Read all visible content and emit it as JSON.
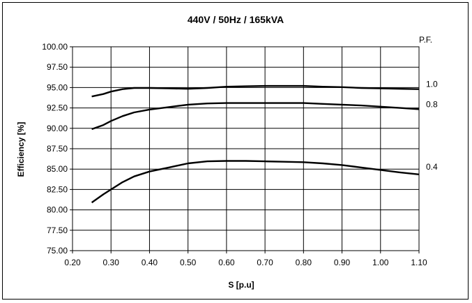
{
  "chart_data": {
    "type": "line",
    "title": "440V / 50Hz / 165kVA",
    "xlabel": "S [p.u]",
    "ylabel": "Efficiency [%]",
    "xlim": [
      0.2,
      1.1
    ],
    "ylim": [
      75.0,
      100.0
    ],
    "x_ticks": [
      "0.20",
      "0.30",
      "0.40",
      "0.50",
      "0.60",
      "0.70",
      "0.80",
      "0.90",
      "1.00",
      "1.10"
    ],
    "y_ticks": [
      "75.00",
      "77.50",
      "80.00",
      "82.50",
      "85.00",
      "87.50",
      "90.00",
      "92.50",
      "95.00",
      "97.50",
      "100.00"
    ],
    "grid": true,
    "legend_header": "P.F.",
    "series": [
      {
        "name": "1.0",
        "points": [
          [
            0.25,
            93.9
          ],
          [
            0.28,
            94.2
          ],
          [
            0.3,
            94.5
          ],
          [
            0.33,
            94.8
          ],
          [
            0.36,
            94.95
          ],
          [
            0.4,
            94.95
          ],
          [
            0.45,
            94.9
          ],
          [
            0.5,
            94.85
          ],
          [
            0.55,
            94.95
          ],
          [
            0.6,
            95.1
          ],
          [
            0.65,
            95.15
          ],
          [
            0.7,
            95.2
          ],
          [
            0.75,
            95.2
          ],
          [
            0.8,
            95.2
          ],
          [
            0.85,
            95.1
          ],
          [
            0.9,
            95.05
          ],
          [
            0.95,
            94.95
          ],
          [
            1.0,
            94.9
          ],
          [
            1.05,
            94.85
          ],
          [
            1.1,
            94.8
          ]
        ]
      },
      {
        "name": "0.8",
        "points": [
          [
            0.25,
            89.9
          ],
          [
            0.28,
            90.4
          ],
          [
            0.3,
            90.9
          ],
          [
            0.33,
            91.5
          ],
          [
            0.36,
            91.95
          ],
          [
            0.4,
            92.3
          ],
          [
            0.45,
            92.6
          ],
          [
            0.5,
            92.9
          ],
          [
            0.55,
            93.05
          ],
          [
            0.6,
            93.1
          ],
          [
            0.65,
            93.1
          ],
          [
            0.7,
            93.1
          ],
          [
            0.75,
            93.1
          ],
          [
            0.8,
            93.1
          ],
          [
            0.85,
            93.0
          ],
          [
            0.9,
            92.9
          ],
          [
            0.95,
            92.8
          ],
          [
            1.0,
            92.65
          ],
          [
            1.05,
            92.5
          ],
          [
            1.1,
            92.35
          ]
        ]
      },
      {
        "name": "0.4",
        "points": [
          [
            0.25,
            80.9
          ],
          [
            0.28,
            81.9
          ],
          [
            0.3,
            82.5
          ],
          [
            0.33,
            83.4
          ],
          [
            0.36,
            84.1
          ],
          [
            0.4,
            84.7
          ],
          [
            0.45,
            85.2
          ],
          [
            0.5,
            85.7
          ],
          [
            0.55,
            85.95
          ],
          [
            0.6,
            86.0
          ],
          [
            0.65,
            86.0
          ],
          [
            0.7,
            85.95
          ],
          [
            0.75,
            85.9
          ],
          [
            0.8,
            85.85
          ],
          [
            0.85,
            85.7
          ],
          [
            0.9,
            85.5
          ],
          [
            0.95,
            85.2
          ],
          [
            1.0,
            84.9
          ],
          [
            1.05,
            84.6
          ],
          [
            1.1,
            84.35
          ]
        ]
      }
    ]
  }
}
